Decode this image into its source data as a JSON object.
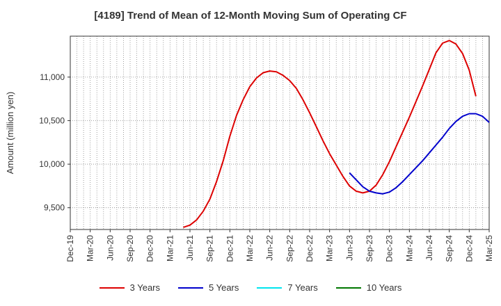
{
  "chart_data": {
    "type": "line",
    "title": "[4189]  Trend of Mean of 12-Month Moving Sum of Operating CF",
    "xlabel": "",
    "ylabel": "Amount (million yen)",
    "ylim": [
      9250,
      11470
    ],
    "yticks": [
      9500,
      10000,
      10500,
      11000
    ],
    "ytick_labels": [
      "9,500",
      "10,000",
      "10,500",
      "11,000"
    ],
    "x_labels": [
      "Dec-19",
      "Mar-20",
      "Jun-20",
      "Sep-20",
      "Dec-20",
      "Mar-21",
      "Jun-21",
      "Sep-21",
      "Dec-21",
      "Mar-22",
      "Jun-22",
      "Sep-22",
      "Dec-22",
      "Mar-23",
      "Jun-23",
      "Sep-23",
      "Dec-23",
      "Mar-24",
      "Jun-24",
      "Sep-24",
      "Dec-24",
      "Mar-25"
    ],
    "x_start": "Dec-19",
    "x_months": 63,
    "grid": true,
    "legend_position": "bottom",
    "series": [
      {
        "name": "3 Years",
        "color": "#dd0000",
        "start_month": 17,
        "values": [
          9275,
          9300,
          9360,
          9460,
          9600,
          9800,
          10040,
          10320,
          10560,
          10740,
          10890,
          10990,
          11050,
          11070,
          11060,
          11020,
          10960,
          10870,
          10740,
          10590,
          10430,
          10270,
          10120,
          9990,
          9860,
          9750,
          9690,
          9670,
          9690,
          9760,
          9880,
          10030,
          10200,
          10370,
          10540,
          10720,
          10900,
          11090,
          11280,
          11390,
          11420,
          11380,
          11270,
          11080,
          10780
        ]
      },
      {
        "name": "5 Years",
        "color": "#0000cc",
        "start_month": 42,
        "values": [
          9900,
          9820,
          9740,
          9690,
          9670,
          9660,
          9680,
          9730,
          9800,
          9880,
          9960,
          10040,
          10130,
          10220,
          10310,
          10410,
          10490,
          10550,
          10580,
          10580,
          10550,
          10480
        ]
      },
      {
        "name": "7 Years",
        "color": "#00e5ee",
        "start_month": 0,
        "values": []
      },
      {
        "name": "10 Years",
        "color": "#007700",
        "start_month": 0,
        "values": []
      }
    ]
  }
}
